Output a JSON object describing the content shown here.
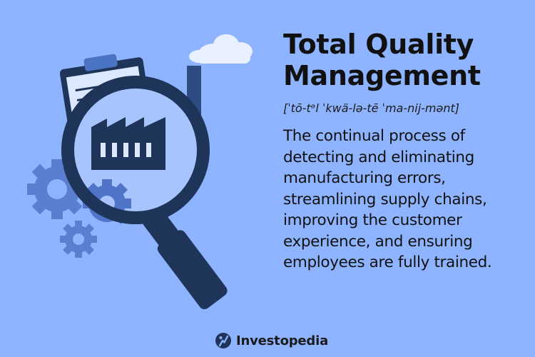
{
  "title": "Total Quality\nManagement",
  "pronunciation": "[ˈtō-tᵊl ˈkwä-lə-tē ˈma-nij-mənt]",
  "definition": "The continual process of detecting and eliminating manufacturing errors, streamlining supply chains, improving the customer experience, and ensuring employees are fully trained.",
  "brand": {
    "name": "Investopedia",
    "logo_icon": "investopedia-logo-icon"
  },
  "illustration": {
    "icons": [
      "clipboard-icon",
      "factory-icon",
      "cloud-icon",
      "gear-icon",
      "magnifying-glass-icon"
    ]
  },
  "colors": {
    "background": "#8fb4ff",
    "navy": "#1e3458",
    "mid_blue": "#4a73c4",
    "gear_blue": "#5b7fd0",
    "paper": "#dce8ff",
    "cloud": "#e9f0ff",
    "text": "#111111"
  }
}
